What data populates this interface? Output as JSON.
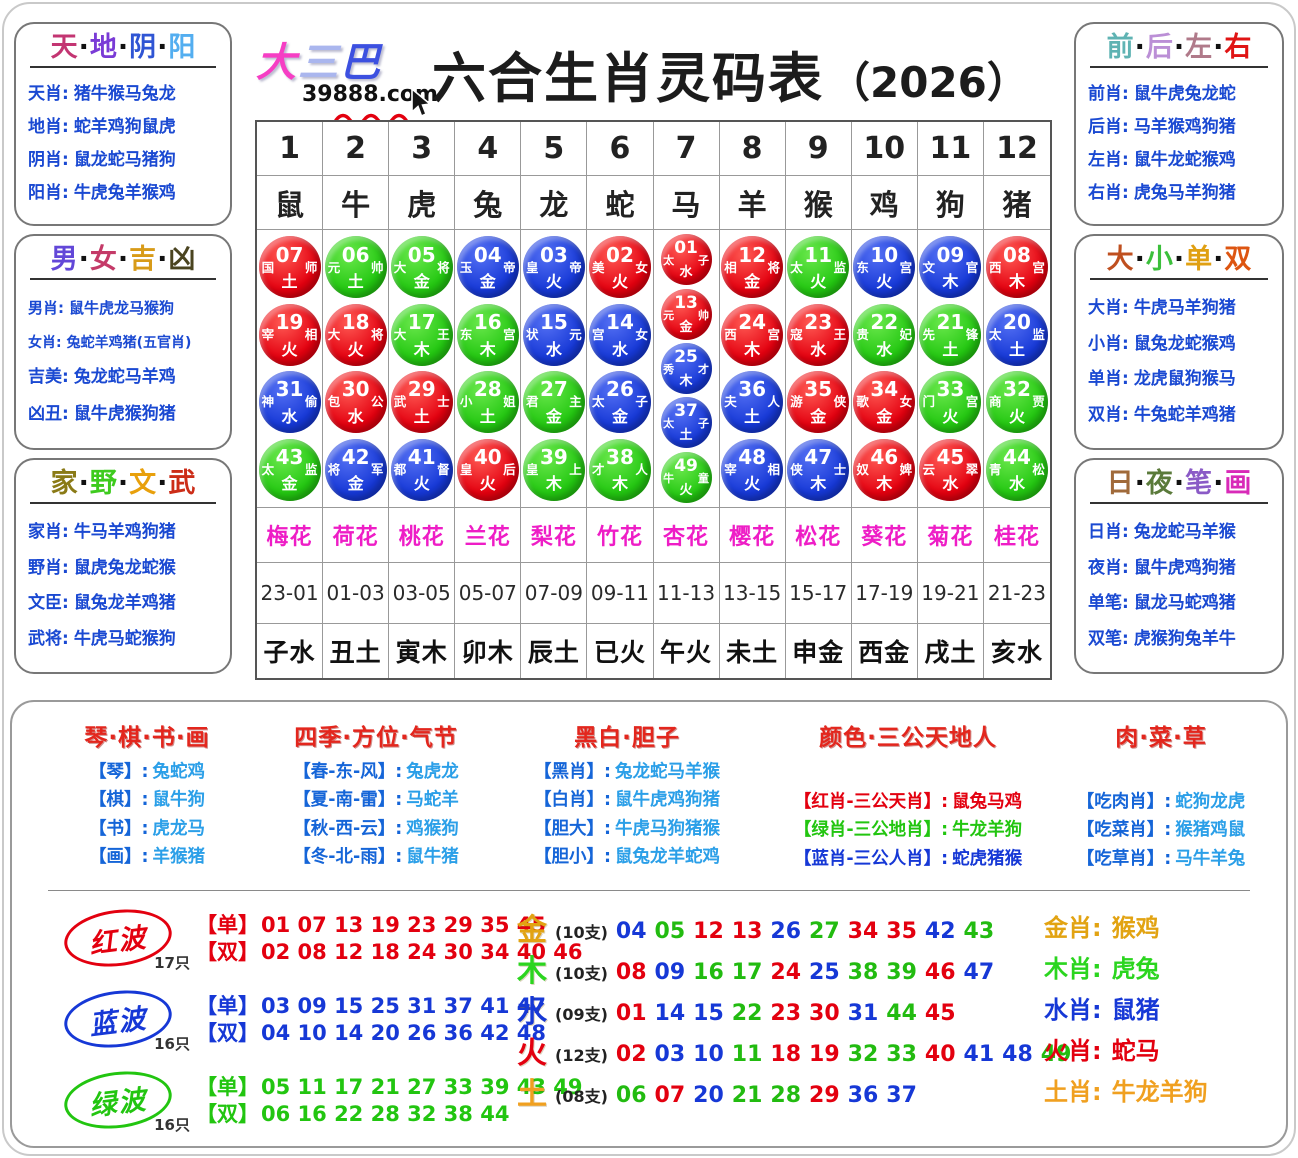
{
  "header": {
    "logo_chars": [
      {
        "t": "大",
        "c": "#f63ec4"
      },
      {
        "t": "三",
        "c": "#aab6ee"
      },
      {
        "t": "巴",
        "c": "#3c50e0"
      }
    ],
    "site_url": "39888.com",
    "title": "六合生肖灵码表",
    "year": "（2026）"
  },
  "side_panels": {
    "left": [
      {
        "key": "tian-di-yin-yang",
        "title": [
          {
            "t": "天",
            "c": "#c33572"
          },
          {
            "t": "地",
            "c": "#7a3bd6"
          },
          {
            "t": "阴",
            "c": "#2f55d4"
          },
          {
            "t": "阳",
            "c": "#53aef0"
          }
        ],
        "rows": [
          {
            "label": "天肖:",
            "value": "猪牛猴马兔龙"
          },
          {
            "label": "地肖:",
            "value": "蛇羊鸡狗鼠虎"
          },
          {
            "label": "阴肖:",
            "value": "鼠龙蛇马猪狗"
          },
          {
            "label": "阳肖:",
            "value": "牛虎兔羊猴鸡"
          }
        ]
      },
      {
        "key": "nan-nv-ji-xiong",
        "title": [
          {
            "t": "男",
            "c": "#6247d8"
          },
          {
            "t": "女",
            "c": "#c43a68"
          },
          {
            "t": "吉",
            "c": "#d89b18"
          },
          {
            "t": "凶",
            "c": "#4a4420"
          }
        ],
        "rows": [
          {
            "label": "男肖:",
            "value": "鼠牛虎龙马猴狗",
            "size": "15px"
          },
          {
            "label": "女肖:",
            "value": "兔蛇羊鸡猪(五官肖)",
            "size": "14px"
          },
          {
            "label": "吉美:",
            "value": "兔龙蛇马羊鸡"
          },
          {
            "label": "凶丑:",
            "value": "鼠牛虎猴狗猪"
          }
        ]
      },
      {
        "key": "jia-ye-wen-wu",
        "title": [
          {
            "t": "家",
            "c": "#8a7a16"
          },
          {
            "t": "野",
            "c": "#3ecb1e"
          },
          {
            "t": "文",
            "c": "#e8a00c"
          },
          {
            "t": "武",
            "c": "#cc2d18"
          }
        ],
        "rows": [
          {
            "label": "家肖:",
            "value": "牛马羊鸡狗猪"
          },
          {
            "label": "野肖:",
            "value": "鼠虎兔龙蛇猴"
          },
          {
            "label": "文臣:",
            "value": "鼠兔龙羊鸡猪"
          },
          {
            "label": "武将:",
            "value": "牛虎马蛇猴狗"
          }
        ]
      }
    ],
    "right": [
      {
        "key": "qian-hou-zuo-you",
        "title": [
          {
            "t": "前",
            "c": "#5fb3b3"
          },
          {
            "t": "后",
            "c": "#bb8fd6"
          },
          {
            "t": "左",
            "c": "#b07a8a"
          },
          {
            "t": "右",
            "c": "#e01414"
          }
        ],
        "rows": [
          {
            "label": "前肖:",
            "value": "鼠牛虎兔龙蛇"
          },
          {
            "label": "后肖:",
            "value": "马羊猴鸡狗猪"
          },
          {
            "label": "左肖:",
            "value": "鼠牛龙蛇猴鸡"
          },
          {
            "label": "右肖:",
            "value": "虎兔马羊狗猪"
          }
        ]
      },
      {
        "key": "da-xiao-dan-shuang",
        "title": [
          {
            "t": "大",
            "c": "#bf4f1f"
          },
          {
            "t": "小",
            "c": "#3bbf3b"
          },
          {
            "t": "单",
            "c": "#e0a012"
          },
          {
            "t": "双",
            "c": "#dd5511"
          }
        ],
        "rows": [
          {
            "label": "大肖:",
            "value": "牛虎马羊狗猪"
          },
          {
            "label": "小肖:",
            "value": "鼠兔龙蛇猴鸡"
          },
          {
            "label": "单肖:",
            "value": "龙虎鼠狗猴马"
          },
          {
            "label": "双肖:",
            "value": "牛兔蛇羊鸡猪"
          }
        ]
      },
      {
        "key": "ri-ye-bi-hua",
        "title": [
          {
            "t": "日",
            "c": "#a06a3a"
          },
          {
            "t": "夜",
            "c": "#5a7a3a"
          },
          {
            "t": "笔",
            "c": "#8a5ac6"
          },
          {
            "t": "画",
            "c": "#d82ab8"
          }
        ],
        "rows": [
          {
            "label": "日肖:",
            "value": "兔龙蛇马羊猴"
          },
          {
            "label": "夜肖:",
            "value": "鼠牛虎鸡狗猪"
          },
          {
            "label": "单笔:",
            "value": "鼠龙马蛇鸡猪"
          },
          {
            "label": "双笔:",
            "value": "虎猴狗兔羊牛"
          }
        ]
      }
    ]
  },
  "grid": {
    "columns": [
      {
        "num": "1",
        "zodiac": "鼠",
        "flower": "梅花",
        "time": "23-01",
        "branch": "子水",
        "balls": [
          [
            "07",
            "国师",
            "土",
            "red"
          ],
          [
            "19",
            "宰相",
            "火",
            "red"
          ],
          [
            "31",
            "神偷",
            "水",
            "blue"
          ],
          [
            "43",
            "太监",
            "金",
            "green"
          ]
        ]
      },
      {
        "num": "2",
        "zodiac": "牛",
        "flower": "荷花",
        "time": "01-03",
        "branch": "丑土",
        "balls": [
          [
            "06",
            "元帅",
            "土",
            "green"
          ],
          [
            "18",
            "大将",
            "火",
            "red"
          ],
          [
            "30",
            "包公",
            "水",
            "red"
          ],
          [
            "42",
            "将军",
            "金",
            "blue"
          ]
        ]
      },
      {
        "num": "3",
        "zodiac": "虎",
        "flower": "桃花",
        "time": "03-05",
        "branch": "寅木",
        "balls": [
          [
            "05",
            "大将",
            "金",
            "green"
          ],
          [
            "17",
            "大王",
            "木",
            "green"
          ],
          [
            "29",
            "武士",
            "土",
            "red"
          ],
          [
            "41",
            "都督",
            "火",
            "blue"
          ]
        ]
      },
      {
        "num": "4",
        "zodiac": "兔",
        "flower": "兰花",
        "time": "05-07",
        "branch": "卯木",
        "balls": [
          [
            "04",
            "玉帝",
            "金",
            "blue"
          ],
          [
            "16",
            "东宫",
            "木",
            "green"
          ],
          [
            "28",
            "小姐",
            "土",
            "green"
          ],
          [
            "40",
            "皇后",
            "火",
            "red"
          ]
        ]
      },
      {
        "num": "5",
        "zodiac": "龙",
        "flower": "梨花",
        "time": "07-09",
        "branch": "辰土",
        "balls": [
          [
            "03",
            "皇帝",
            "火",
            "blue"
          ],
          [
            "15",
            "状元",
            "水",
            "blue"
          ],
          [
            "27",
            "君主",
            "金",
            "green"
          ],
          [
            "39",
            "皇上",
            "木",
            "green"
          ]
        ]
      },
      {
        "num": "6",
        "zodiac": "蛇",
        "flower": "竹花",
        "time": "09-11",
        "branch": "已火",
        "balls": [
          [
            "02",
            "美女",
            "火",
            "red"
          ],
          [
            "14",
            "宫女",
            "水",
            "blue"
          ],
          [
            "26",
            "太子",
            "金",
            "blue"
          ],
          [
            "38",
            "才人",
            "木",
            "green"
          ]
        ]
      },
      {
        "num": "7",
        "zodiac": "马",
        "flower": "杏花",
        "time": "11-13",
        "branch": "午火",
        "balls": [
          [
            "01",
            "太子",
            "水",
            "red"
          ],
          [
            "13",
            "元帅",
            "金",
            "red"
          ],
          [
            "25",
            "秀才",
            "木",
            "blue"
          ],
          [
            "37",
            "太子",
            "土",
            "blue"
          ],
          [
            "49",
            "牛童",
            "火",
            "green"
          ]
        ]
      },
      {
        "num": "8",
        "zodiac": "羊",
        "flower": "樱花",
        "time": "13-15",
        "branch": "未土",
        "balls": [
          [
            "12",
            "相将",
            "金",
            "red"
          ],
          [
            "24",
            "西宫",
            "木",
            "red"
          ],
          [
            "36",
            "夫人",
            "土",
            "blue"
          ],
          [
            "48",
            "宰相",
            "火",
            "blue"
          ]
        ]
      },
      {
        "num": "9",
        "zodiac": "猴",
        "flower": "松花",
        "time": "15-17",
        "branch": "申金",
        "balls": [
          [
            "11",
            "太监",
            "火",
            "green"
          ],
          [
            "23",
            "寇王",
            "水",
            "red"
          ],
          [
            "35",
            "游侠",
            "金",
            "red"
          ],
          [
            "47",
            "侠士",
            "木",
            "blue"
          ]
        ]
      },
      {
        "num": "10",
        "zodiac": "鸡",
        "flower": "葵花",
        "time": "17-19",
        "branch": "西金",
        "balls": [
          [
            "10",
            "东宫",
            "火",
            "blue"
          ],
          [
            "22",
            "贵妃",
            "水",
            "green"
          ],
          [
            "34",
            "歌女",
            "金",
            "red"
          ],
          [
            "46",
            "奴婢",
            "木",
            "red"
          ]
        ]
      },
      {
        "num": "11",
        "zodiac": "狗",
        "flower": "菊花",
        "time": "19-21",
        "branch": "戌土",
        "balls": [
          [
            "09",
            "文官",
            "木",
            "blue"
          ],
          [
            "21",
            "先锋",
            "土",
            "green"
          ],
          [
            "33",
            "门宫",
            "火",
            "green"
          ],
          [
            "45",
            "云翠",
            "水",
            "red"
          ]
        ]
      },
      {
        "num": "12",
        "zodiac": "猪",
        "flower": "桂花",
        "time": "21-23",
        "branch": "亥水",
        "balls": [
          [
            "08",
            "西宫",
            "木",
            "red"
          ],
          [
            "20",
            "太监",
            "土",
            "blue"
          ],
          [
            "32",
            "商贾",
            "火",
            "green"
          ],
          [
            "44",
            "青松",
            "水",
            "green"
          ]
        ]
      }
    ]
  },
  "bottom": {
    "categories": [
      {
        "key": "qin-qi-shu-hua",
        "title": "琴·棋·书·画",
        "rows": [
          {
            "label": "【琴】:",
            "value": "兔蛇鸡"
          },
          {
            "label": "【棋】:",
            "value": "鼠牛狗"
          },
          {
            "label": "【书】:",
            "value": "虎龙马"
          },
          {
            "label": "【画】:",
            "value": "羊猴猪"
          }
        ]
      },
      {
        "key": "si-ji-fang-wei-qi-jie",
        "title": "四季·方位·气节",
        "rows": [
          {
            "label": "【春-东-风】:",
            "value": "兔虎龙"
          },
          {
            "label": "【夏-南-雷】:",
            "value": "马蛇羊"
          },
          {
            "label": "【秋-西-云】:",
            "value": "鸡猴狗"
          },
          {
            "label": "【冬-北-雨】:",
            "value": "鼠牛猪"
          }
        ]
      },
      {
        "key": "hei-bai-dan-zi",
        "title": "黑白·胆子",
        "rows": [
          {
            "label": "【黑肖】:",
            "value": "兔龙蛇马羊猴"
          },
          {
            "label": "【白肖】:",
            "value": "鼠牛虎鸡狗猪"
          },
          {
            "label": "【胆大】:",
            "value": "牛虎马狗猪猴"
          },
          {
            "label": "【胆小】:",
            "value": "鼠兔龙羊蛇鸡"
          }
        ]
      },
      {
        "key": "yan-se-san-gong-tian-di-ren",
        "title": "颜色·三公天地人",
        "offset": true,
        "rows": [
          {
            "label": "【红肖-三公天肖】:",
            "value": "鼠兔马鸡",
            "color": "#e3000f"
          },
          {
            "label": "【绿肖-三公地肖】:",
            "value": "牛龙羊狗",
            "color": "#22c510"
          },
          {
            "label": "【蓝肖-三公人肖】:",
            "value": "蛇虎猪猴",
            "color": "#1638d6"
          }
        ]
      },
      {
        "key": "rou-cai-cao",
        "title": "肉·菜·草",
        "offset": true,
        "rows": [
          {
            "label": "【吃肉肖】:",
            "value": "蛇狗龙虎"
          },
          {
            "label": "【吃菜肖】:",
            "value": "猴猪鸡鼠"
          },
          {
            "label": "【吃草肖】:",
            "value": "马牛羊兔"
          }
        ]
      }
    ],
    "waves": [
      {
        "key": "red-wave",
        "name": "红波",
        "count": "17只",
        "color": "#e3000f",
        "odd_label": "【单】",
        "odd": "01 07 13 19 23 29 35 45",
        "even_label": "【双】",
        "even": "02 08 12 18 24 30 34 40 46"
      },
      {
        "key": "blue-wave",
        "name": "蓝波",
        "count": "16只",
        "color": "#1638d6",
        "odd_label": "【单】",
        "odd": "03 09 15 25 31 37 41 47",
        "even_label": "【双】",
        "even": "04 10 14 20 26 36 42 48"
      },
      {
        "key": "green-wave",
        "name": "绿波",
        "count": "16只",
        "color": "#22c510",
        "odd_label": "【单】",
        "odd": "05 11 17 21 27 33 39 43 49",
        "even_label": "【双】",
        "even": "06 16 22 28 32 38 44"
      }
    ],
    "five_elements": [
      {
        "key": "gold",
        "elem": "金",
        "color": "#e2a312",
        "count": "(10支)",
        "nums": [
          [
            "04",
            "blue"
          ],
          [
            "05",
            "green"
          ],
          [
            "12",
            "red"
          ],
          [
            "13",
            "red"
          ],
          [
            "26",
            "blue"
          ],
          [
            "27",
            "green"
          ],
          [
            "34",
            "red"
          ],
          [
            "35",
            "red"
          ],
          [
            "42",
            "blue"
          ],
          [
            "43",
            "green"
          ]
        ]
      },
      {
        "key": "wood",
        "elem": "木",
        "color": "#2bd51f",
        "count": "(10支)",
        "nums": [
          [
            "08",
            "red"
          ],
          [
            "09",
            "blue"
          ],
          [
            "16",
            "green"
          ],
          [
            "17",
            "green"
          ],
          [
            "24",
            "red"
          ],
          [
            "25",
            "blue"
          ],
          [
            "38",
            "green"
          ],
          [
            "39",
            "green"
          ],
          [
            "46",
            "red"
          ],
          [
            "47",
            "blue"
          ]
        ]
      },
      {
        "key": "water",
        "elem": "水",
        "color": "#1638d6",
        "count": "(09支)",
        "nums": [
          [
            "01",
            "red"
          ],
          [
            "14",
            "blue"
          ],
          [
            "15",
            "blue"
          ],
          [
            "22",
            "green"
          ],
          [
            "23",
            "red"
          ],
          [
            "30",
            "red"
          ],
          [
            "31",
            "blue"
          ],
          [
            "44",
            "green"
          ],
          [
            "45",
            "red"
          ]
        ]
      },
      {
        "key": "fire",
        "elem": "火",
        "color": "#e3000f",
        "count": "(12支)",
        "nums": [
          [
            "02",
            "red"
          ],
          [
            "03",
            "blue"
          ],
          [
            "10",
            "blue"
          ],
          [
            "11",
            "green"
          ],
          [
            "18",
            "red"
          ],
          [
            "19",
            "red"
          ],
          [
            "32",
            "green"
          ],
          [
            "33",
            "green"
          ],
          [
            "40",
            "red"
          ],
          [
            "41",
            "blue"
          ],
          [
            "48",
            "blue"
          ],
          [
            "49",
            "green"
          ]
        ]
      },
      {
        "key": "earth",
        "elem": "土",
        "color": "#f0a020",
        "count": "(08支)",
        "nums": [
          [
            "06",
            "green"
          ],
          [
            "07",
            "red"
          ],
          [
            "20",
            "blue"
          ],
          [
            "21",
            "green"
          ],
          [
            "28",
            "green"
          ],
          [
            "29",
            "red"
          ],
          [
            "36",
            "blue"
          ],
          [
            "37",
            "blue"
          ]
        ]
      }
    ],
    "element_zodiac": [
      {
        "key": "gold",
        "label": "金肖:",
        "value": "猴鸡",
        "color": "#e2a312"
      },
      {
        "key": "wood",
        "label": "木肖:",
        "value": "虎兔",
        "color": "#2bd51f"
      },
      {
        "key": "water",
        "label": "水肖:",
        "value": "鼠猪",
        "color": "#1638d6"
      },
      {
        "key": "fire",
        "label": "火肖:",
        "value": "蛇马",
        "color": "#e3000f"
      },
      {
        "key": "earth",
        "label": "土肖:",
        "value": "牛龙羊狗",
        "color": "#f0a020"
      }
    ]
  }
}
